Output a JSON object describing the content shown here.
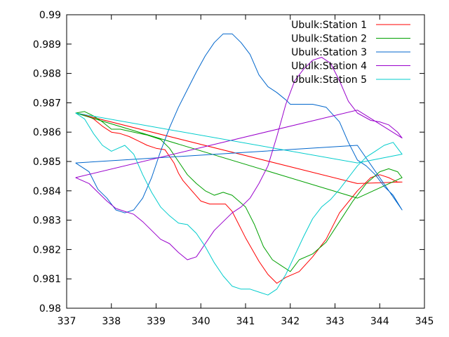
{
  "chart_data": {
    "type": "line",
    "title": "",
    "xlabel": "",
    "ylabel": "",
    "xlim": [
      337,
      345
    ],
    "ylim": [
      0.98,
      0.99
    ],
    "x_ticks": [
      "337",
      "338",
      "339",
      "340",
      "341",
      "342",
      "343",
      "344",
      "345"
    ],
    "y_ticks": [
      "0.98",
      "0.981",
      "0.982",
      "0.983",
      "0.984",
      "0.985",
      "0.986",
      "0.987",
      "0.988",
      "0.989",
      "0.99"
    ],
    "grid": false,
    "legend_position": "top-right",
    "series": [
      {
        "name": "Ubulk:Station 1",
        "color": "#ff0000",
        "points": [
          [
            337.2,
            0.98665
          ],
          [
            337.4,
            0.9866
          ],
          [
            337.6,
            0.98645
          ],
          [
            337.8,
            0.9862
          ],
          [
            338.0,
            0.986
          ],
          [
            338.2,
            0.98595
          ],
          [
            338.4,
            0.98585
          ],
          [
            338.6,
            0.9857
          ],
          [
            338.8,
            0.98555
          ],
          [
            339.0,
            0.98545
          ],
          [
            339.2,
            0.9854
          ],
          [
            339.4,
            0.98495
          ],
          [
            339.5,
            0.9846
          ],
          [
            339.6,
            0.98435
          ],
          [
            339.8,
            0.984
          ],
          [
            340.0,
            0.98365
          ],
          [
            340.2,
            0.98355
          ],
          [
            340.4,
            0.98355
          ],
          [
            340.55,
            0.98355
          ],
          [
            340.7,
            0.9833
          ],
          [
            341.0,
            0.9824
          ],
          [
            341.3,
            0.9816
          ],
          [
            341.5,
            0.98115
          ],
          [
            341.7,
            0.98085
          ],
          [
            341.9,
            0.98105
          ],
          [
            342.2,
            0.98125
          ],
          [
            342.5,
            0.98175
          ],
          [
            342.8,
            0.98235
          ],
          [
            343.1,
            0.98325
          ],
          [
            343.5,
            0.984
          ],
          [
            343.8,
            0.98445
          ],
          [
            344.0,
            0.98455
          ],
          [
            344.2,
            0.98445
          ],
          [
            344.4,
            0.9843
          ],
          [
            344.5,
            0.9843
          ],
          [
            343.5,
            0.98425
          ],
          [
            337.2,
            0.98665
          ]
        ]
      },
      {
        "name": "Ubulk:Station 2",
        "color": "#00a000",
        "points": [
          [
            337.2,
            0.98665
          ],
          [
            337.4,
            0.9867
          ],
          [
            337.6,
            0.98655
          ],
          [
            337.8,
            0.98635
          ],
          [
            338.0,
            0.9861
          ],
          [
            338.2,
            0.9861
          ],
          [
            338.5,
            0.986
          ],
          [
            338.8,
            0.9859
          ],
          [
            339.1,
            0.98575
          ],
          [
            339.3,
            0.98545
          ],
          [
            339.5,
            0.985
          ],
          [
            339.7,
            0.98455
          ],
          [
            339.9,
            0.98425
          ],
          [
            340.1,
            0.984
          ],
          [
            340.3,
            0.98385
          ],
          [
            340.5,
            0.98395
          ],
          [
            340.7,
            0.98385
          ],
          [
            341.0,
            0.98345
          ],
          [
            341.2,
            0.98285
          ],
          [
            341.4,
            0.9821
          ],
          [
            341.6,
            0.98165
          ],
          [
            341.8,
            0.98145
          ],
          [
            342.0,
            0.98125
          ],
          [
            342.2,
            0.98165
          ],
          [
            342.5,
            0.98185
          ],
          [
            342.8,
            0.98225
          ],
          [
            343.1,
            0.98295
          ],
          [
            343.4,
            0.98365
          ],
          [
            343.7,
            0.98425
          ],
          [
            344.0,
            0.98465
          ],
          [
            344.2,
            0.98475
          ],
          [
            344.4,
            0.98465
          ],
          [
            344.5,
            0.98445
          ],
          [
            343.5,
            0.98375
          ],
          [
            337.2,
            0.98665
          ]
        ]
      },
      {
        "name": "Ubulk:Station 3",
        "color": "#0066cc",
        "points": [
          [
            337.2,
            0.98495
          ],
          [
            337.5,
            0.98465
          ],
          [
            337.7,
            0.98405
          ],
          [
            337.9,
            0.98375
          ],
          [
            338.1,
            0.98335
          ],
          [
            338.3,
            0.98325
          ],
          [
            338.5,
            0.98335
          ],
          [
            338.7,
            0.98375
          ],
          [
            338.9,
            0.98445
          ],
          [
            339.1,
            0.98535
          ],
          [
            339.3,
            0.98615
          ],
          [
            339.5,
            0.98685
          ],
          [
            339.7,
            0.98745
          ],
          [
            339.9,
            0.98805
          ],
          [
            340.1,
            0.9886
          ],
          [
            340.3,
            0.98905
          ],
          [
            340.5,
            0.98935
          ],
          [
            340.7,
            0.98935
          ],
          [
            340.9,
            0.98905
          ],
          [
            341.1,
            0.98865
          ],
          [
            341.3,
            0.98795
          ],
          [
            341.5,
            0.98755
          ],
          [
            341.7,
            0.98735
          ],
          [
            341.9,
            0.9871
          ],
          [
            342.0,
            0.98695
          ],
          [
            342.2,
            0.98695
          ],
          [
            342.5,
            0.98695
          ],
          [
            342.8,
            0.98685
          ],
          [
            343.1,
            0.98635
          ],
          [
            343.3,
            0.98565
          ],
          [
            343.5,
            0.98505
          ],
          [
            343.7,
            0.98485
          ],
          [
            343.9,
            0.98455
          ],
          [
            344.1,
            0.98415
          ],
          [
            344.3,
            0.98385
          ],
          [
            344.5,
            0.98335
          ],
          [
            343.5,
            0.98555
          ],
          [
            337.2,
            0.98495
          ]
        ]
      },
      {
        "name": "Ubulk:Station 4",
        "color": "#9900cc",
        "points": [
          [
            337.2,
            0.98445
          ],
          [
            337.5,
            0.98425
          ],
          [
            337.7,
            0.98395
          ],
          [
            337.9,
            0.98365
          ],
          [
            338.1,
            0.9834
          ],
          [
            338.3,
            0.9833
          ],
          [
            338.5,
            0.9832
          ],
          [
            338.7,
            0.98295
          ],
          [
            338.9,
            0.98265
          ],
          [
            339.1,
            0.98235
          ],
          [
            339.3,
            0.9822
          ],
          [
            339.5,
            0.9819
          ],
          [
            339.7,
            0.98165
          ],
          [
            339.9,
            0.98175
          ],
          [
            340.1,
            0.9822
          ],
          [
            340.3,
            0.98265
          ],
          [
            340.5,
            0.98295
          ],
          [
            340.7,
            0.98325
          ],
          [
            340.9,
            0.98345
          ],
          [
            341.1,
            0.98375
          ],
          [
            341.3,
            0.98425
          ],
          [
            341.5,
            0.98485
          ],
          [
            341.7,
            0.98585
          ],
          [
            341.9,
            0.98695
          ],
          [
            342.1,
            0.98775
          ],
          [
            342.3,
            0.98815
          ],
          [
            342.5,
            0.98845
          ],
          [
            342.7,
            0.98855
          ],
          [
            342.9,
            0.98835
          ],
          [
            343.1,
            0.98775
          ],
          [
            343.3,
            0.98705
          ],
          [
            343.5,
            0.98665
          ],
          [
            343.8,
            0.9864
          ],
          [
            344.0,
            0.98635
          ],
          [
            344.2,
            0.98625
          ],
          [
            344.4,
            0.986
          ],
          [
            344.5,
            0.9858
          ],
          [
            343.5,
            0.98675
          ],
          [
            337.2,
            0.98445
          ]
        ]
      },
      {
        "name": "Ubulk:Station 5",
        "color": "#00cccc",
        "points": [
          [
            337.2,
            0.98665
          ],
          [
            337.4,
            0.98645
          ],
          [
            337.6,
            0.98595
          ],
          [
            337.8,
            0.98555
          ],
          [
            338.0,
            0.98535
          ],
          [
            338.15,
            0.98545
          ],
          [
            338.3,
            0.98555
          ],
          [
            338.5,
            0.98525
          ],
          [
            338.7,
            0.98455
          ],
          [
            338.9,
            0.98395
          ],
          [
            339.1,
            0.98345
          ],
          [
            339.3,
            0.98315
          ],
          [
            339.5,
            0.9829
          ],
          [
            339.7,
            0.98285
          ],
          [
            339.9,
            0.98255
          ],
          [
            340.1,
            0.9821
          ],
          [
            340.3,
            0.98155
          ],
          [
            340.5,
            0.9811
          ],
          [
            340.7,
            0.98075
          ],
          [
            340.9,
            0.98065
          ],
          [
            341.1,
            0.98065
          ],
          [
            341.3,
            0.98055
          ],
          [
            341.5,
            0.98045
          ],
          [
            341.7,
            0.98065
          ],
          [
            341.9,
            0.98115
          ],
          [
            342.1,
            0.9818
          ],
          [
            342.3,
            0.98245
          ],
          [
            342.5,
            0.98305
          ],
          [
            342.7,
            0.98345
          ],
          [
            342.9,
            0.9837
          ],
          [
            343.1,
            0.98405
          ],
          [
            343.3,
            0.98445
          ],
          [
            343.5,
            0.98485
          ],
          [
            343.7,
            0.98515
          ],
          [
            343.9,
            0.98535
          ],
          [
            344.1,
            0.98555
          ],
          [
            344.3,
            0.98565
          ],
          [
            344.4,
            0.98545
          ],
          [
            344.5,
            0.98525
          ],
          [
            343.5,
            0.98495
          ],
          [
            337.2,
            0.98665
          ]
        ]
      }
    ]
  }
}
